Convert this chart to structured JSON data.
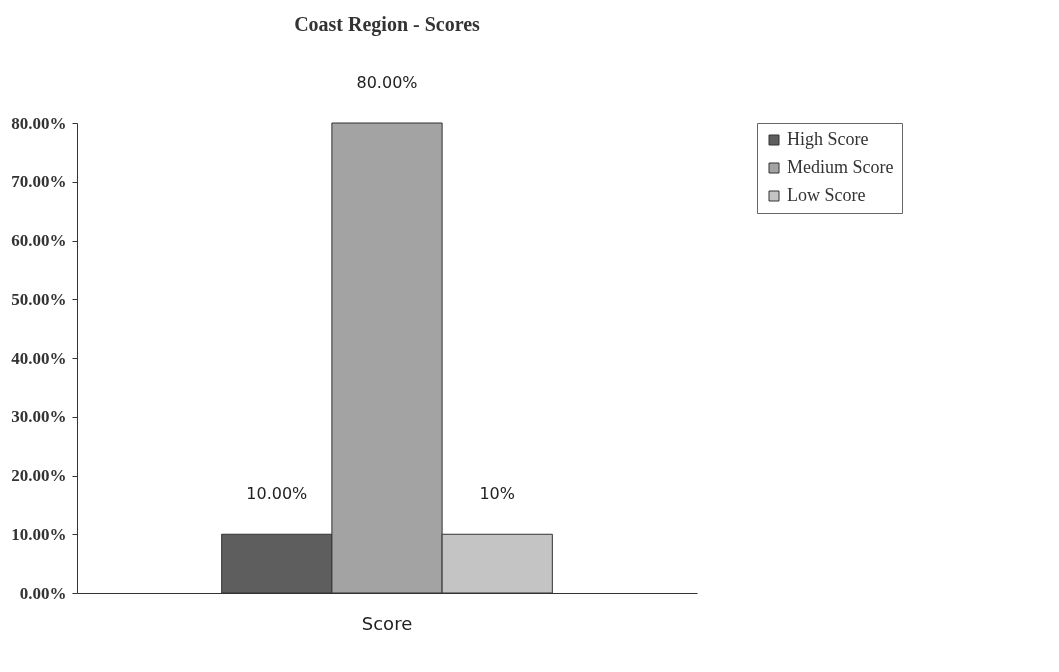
{
  "chart_data": {
    "type": "bar",
    "title": "Coast Region - Scores",
    "categories": [
      "Score"
    ],
    "series": [
      {
        "name": "High Score",
        "color": "#5e5e5e",
        "values": [
          10
        ],
        "value_labels": [
          "10.00%"
        ]
      },
      {
        "name": "Medium Score",
        "color": "#a3a3a3",
        "values": [
          80
        ],
        "value_labels": [
          "80.00%"
        ]
      },
      {
        "name": "Low Score",
        "color": "#c4c4c4",
        "values": [
          10
        ],
        "value_labels": [
          "10%"
        ]
      }
    ],
    "ylim": [
      0,
      80
    ],
    "yticks": [
      {
        "value": 0,
        "label": "0.00%"
      },
      {
        "value": 10,
        "label": "10.00%"
      },
      {
        "value": 20,
        "label": "20.00%"
      },
      {
        "value": 30,
        "label": "30.00%"
      },
      {
        "value": 40,
        "label": "40.00%"
      },
      {
        "value": 50,
        "label": "50.00%"
      },
      {
        "value": 60,
        "label": "60.00%"
      },
      {
        "value": 70,
        "label": "70.00%"
      },
      {
        "value": 80,
        "label": "80.00%"
      }
    ],
    "legend": "right"
  }
}
